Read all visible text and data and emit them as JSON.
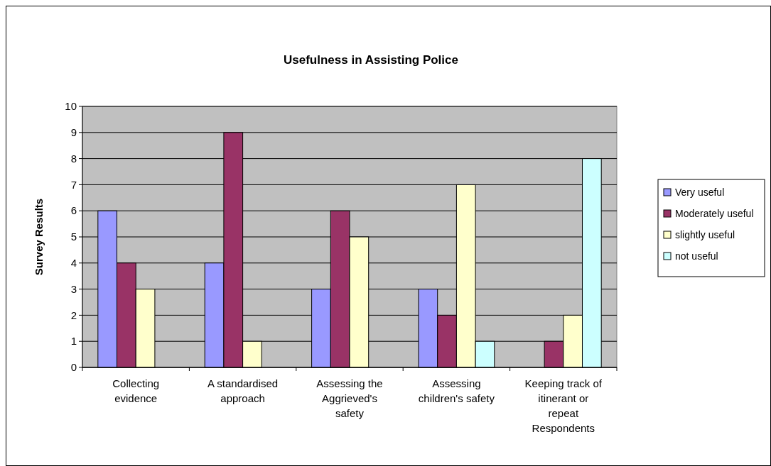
{
  "chart_data": {
    "type": "bar",
    "title": "Usefulness in Assisting Police",
    "ylabel": "Survey Results",
    "categories": [
      "Collecting evidence",
      "A standardised approach",
      "Assessing the Aggrieved's safety",
      "Assessing children's safety",
      "Keeping track of itinerant or repeat Respondents"
    ],
    "series": [
      {
        "name": "Very useful",
        "color": "#9999ff",
        "values": [
          6,
          4,
          3,
          3,
          0
        ]
      },
      {
        "name": "Moderately useful",
        "color": "#993366",
        "values": [
          4,
          9,
          6,
          2,
          1
        ]
      },
      {
        "name": "slightly useful",
        "color": "#ffffcc",
        "values": [
          3,
          1,
          5,
          7,
          2
        ]
      },
      {
        "name": "not useful",
        "color": "#ccffff",
        "values": [
          0,
          0,
          0,
          1,
          8
        ]
      }
    ],
    "ylim": [
      0,
      10
    ],
    "yticks": [
      0,
      1,
      2,
      3,
      4,
      5,
      6,
      7,
      8,
      9,
      10
    ],
    "grid": "y",
    "legend": "right"
  }
}
